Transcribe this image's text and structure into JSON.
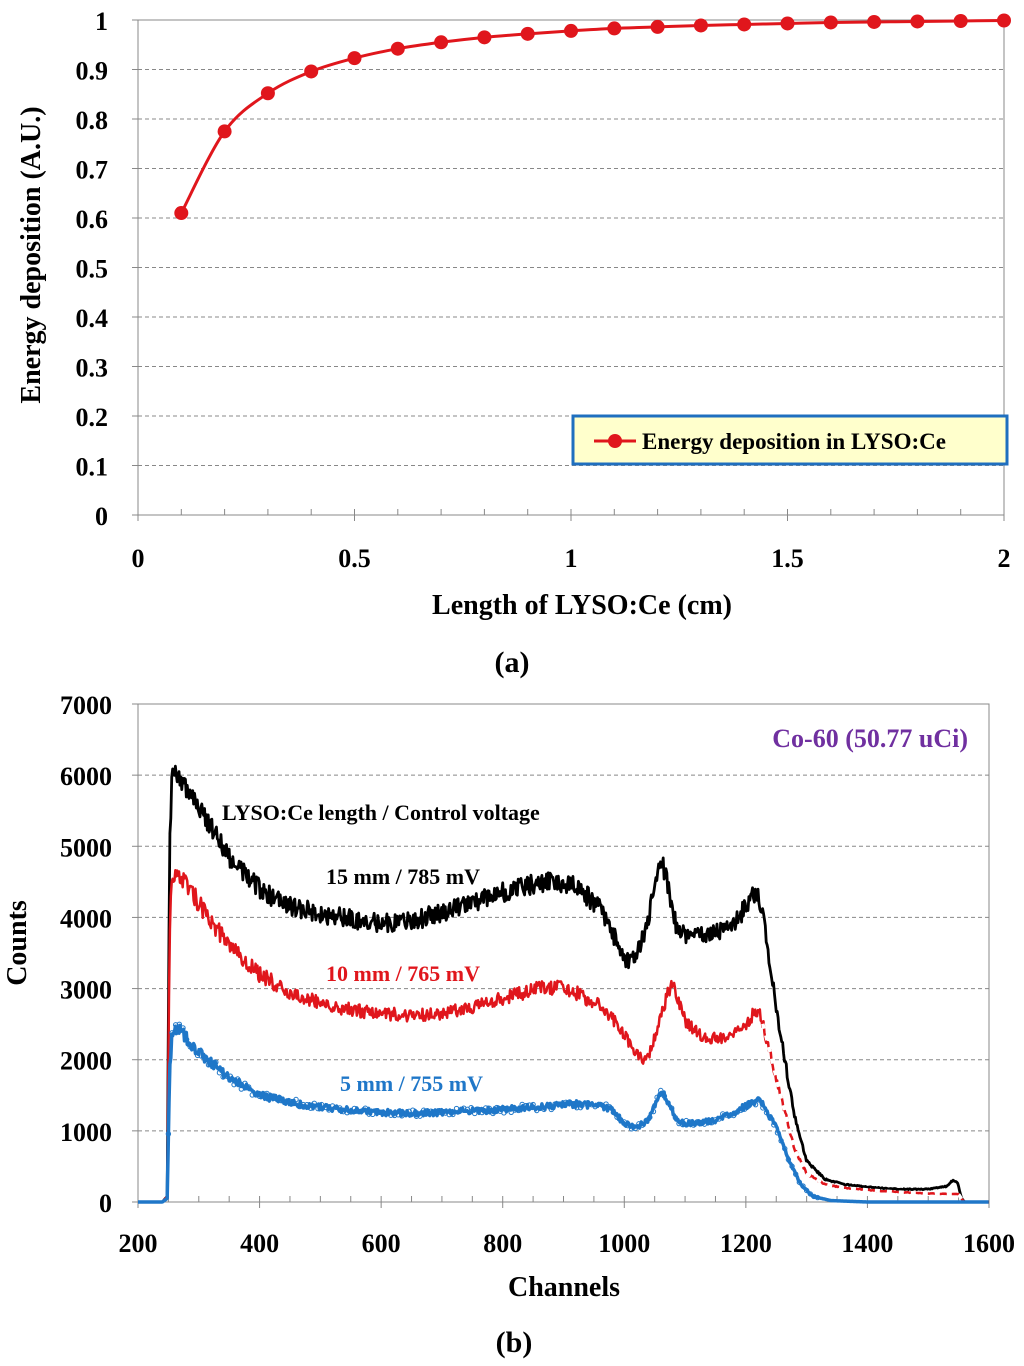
{
  "chart_data": [
    {
      "type": "line",
      "title": "",
      "xlabel": "Length of LYSO:Ce (cm)",
      "ylabel": "Energy deposition (A.U.)",
      "xlim": [
        0,
        2
      ],
      "ylim": [
        0,
        1
      ],
      "x_ticks": [
        "0",
        "0.5",
        "1",
        "1.5",
        "2"
      ],
      "y_ticks": [
        "0",
        "0.1",
        "0.2",
        "0.3",
        "0.4",
        "0.5",
        "0.6",
        "0.7",
        "0.8",
        "0.9",
        "1"
      ],
      "grid": "horizontal dashed",
      "legend": "bottom-right",
      "caption": "(a)",
      "series": [
        {
          "name": "Energy deposition in LYSO:Ce",
          "color": "#e0161c",
          "x": [
            0.1,
            0.2,
            0.3,
            0.4,
            0.5,
            0.6,
            0.7,
            0.8,
            0.9,
            1.0,
            1.1,
            1.2,
            1.3,
            1.4,
            1.5,
            1.6,
            1.7,
            1.8,
            1.9,
            2.0
          ],
          "values": [
            0.61,
            0.775,
            0.852,
            0.896,
            0.923,
            0.942,
            0.955,
            0.965,
            0.972,
            0.978,
            0.983,
            0.986,
            0.989,
            0.991,
            0.993,
            0.995,
            0.996,
            0.997,
            0.998,
            0.999
          ]
        }
      ]
    },
    {
      "type": "line",
      "title": "Co-60 (50.77 uCi)",
      "title_color": "#7030a0",
      "xlabel": "Channels",
      "ylabel": "Counts",
      "xlim": [
        200,
        1600
      ],
      "ylim": [
        0,
        7000
      ],
      "x_ticks": [
        "200",
        "400",
        "600",
        "800",
        "1000",
        "1200",
        "1400",
        "1600"
      ],
      "y_ticks": [
        "0",
        "1000",
        "2000",
        "3000",
        "4000",
        "5000",
        "6000",
        "7000"
      ],
      "grid": "horizontal dashed",
      "legend_header": "LYSO:Ce length / Control voltage",
      "caption": "(b)",
      "series": [
        {
          "name": "15 mm / 785 mV",
          "color": "#000000",
          "style": "solid",
          "x": [
            200,
            240,
            248,
            252,
            256,
            262,
            270,
            300,
            350,
            400,
            450,
            500,
            550,
            600,
            650,
            700,
            750,
            800,
            850,
            880,
            920,
            960,
            980,
            1000,
            1010,
            1020,
            1040,
            1055,
            1062,
            1070,
            1085,
            1100,
            1150,
            1180,
            1200,
            1215,
            1225,
            1240,
            1260,
            1280,
            1300,
            1330,
            1360,
            1400,
            1450,
            1500,
            1530,
            1540,
            1548,
            1555,
            1560,
            1600
          ],
          "values": [
            0,
            0,
            80,
            5000,
            6050,
            6050,
            5950,
            5550,
            4850,
            4400,
            4150,
            4050,
            3980,
            3920,
            3950,
            4060,
            4200,
            4350,
            4470,
            4500,
            4430,
            4150,
            3800,
            3400,
            3380,
            3450,
            4000,
            4650,
            4800,
            4500,
            3900,
            3750,
            3780,
            3900,
            4150,
            4350,
            4200,
            3300,
            2200,
            1200,
            580,
            320,
            250,
            210,
            180,
            180,
            220,
            300,
            280,
            50,
            0,
            0
          ]
        },
        {
          "name": "10 mm / 765 mV",
          "color": "#e0161c",
          "style": "dashed",
          "x": [
            200,
            240,
            248,
            252,
            256,
            262,
            270,
            300,
            350,
            400,
            450,
            500,
            550,
            600,
            650,
            700,
            750,
            800,
            850,
            880,
            900,
            920,
            960,
            990,
            1010,
            1030,
            1040,
            1055,
            1070,
            1078,
            1085,
            1100,
            1130,
            1170,
            1200,
            1215,
            1225,
            1240,
            1260,
            1280,
            1300,
            1330,
            1360,
            1400,
            1450,
            1500,
            1550,
            1555,
            1560,
            1600
          ],
          "values": [
            0,
            0,
            80,
            3800,
            4600,
            4650,
            4600,
            4200,
            3600,
            3200,
            2950,
            2800,
            2700,
            2650,
            2620,
            2660,
            2750,
            2860,
            2980,
            3020,
            3000,
            2950,
            2750,
            2500,
            2200,
            2000,
            2050,
            2450,
            2900,
            3050,
            2950,
            2550,
            2300,
            2300,
            2450,
            2700,
            2600,
            2100,
            1400,
            750,
            400,
            250,
            200,
            170,
            140,
            120,
            110,
            40,
            0,
            0
          ]
        },
        {
          "name": "5 mm / 755 mV",
          "color": "#1f77c8",
          "style": "markers",
          "x": [
            200,
            240,
            248,
            252,
            256,
            262,
            270,
            300,
            350,
            400,
            450,
            500,
            550,
            600,
            650,
            700,
            750,
            800,
            850,
            880,
            920,
            960,
            980,
            1000,
            1020,
            1040,
            1055,
            1062,
            1070,
            1085,
            1100,
            1150,
            1190,
            1210,
            1220,
            1230,
            1250,
            1270,
            1290,
            1310,
            1340,
            1400,
            1500,
            1600
          ],
          "values": [
            0,
            0,
            50,
            1800,
            2400,
            2450,
            2400,
            2100,
            1750,
            1500,
            1400,
            1330,
            1290,
            1260,
            1250,
            1260,
            1280,
            1300,
            1330,
            1350,
            1380,
            1350,
            1300,
            1100,
            1050,
            1150,
            1450,
            1550,
            1450,
            1150,
            1100,
            1150,
            1300,
            1400,
            1420,
            1350,
            1050,
            600,
            250,
            80,
            20,
            0,
            0,
            0
          ]
        }
      ]
    }
  ]
}
